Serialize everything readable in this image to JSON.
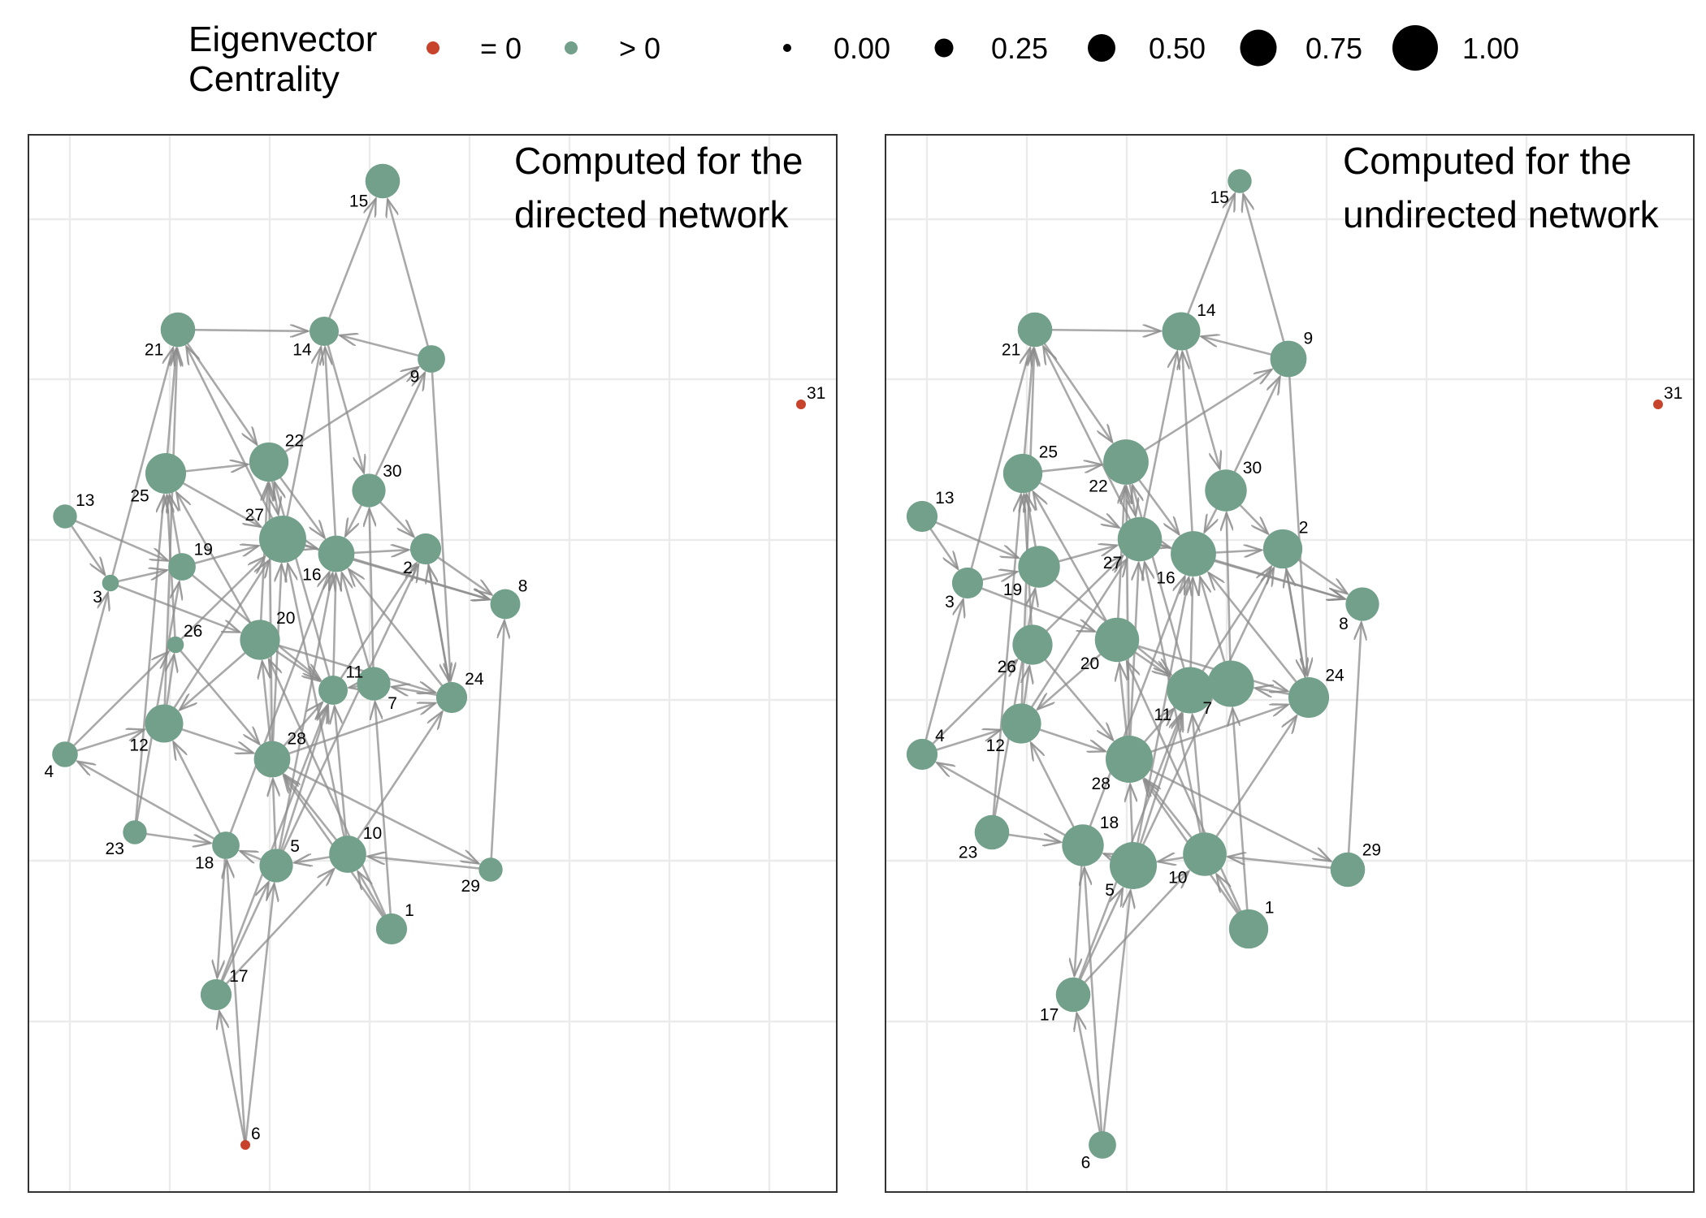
{
  "legend": {
    "title_line1": "Eigenvector",
    "title_line2": "Centrality",
    "color_items": [
      {
        "label": "= 0",
        "color": "#c8432b"
      },
      {
        "label": "> 0",
        "color": "#72a08a"
      }
    ],
    "size_items": [
      {
        "label": "0.00",
        "value": 0.0
      },
      {
        "label": "0.25",
        "value": 0.25
      },
      {
        "label": "0.50",
        "value": 0.5
      },
      {
        "label": "0.75",
        "value": 0.75
      },
      {
        "label": "1.00",
        "value": 1.0
      }
    ]
  },
  "colors": {
    "zero": "#c8432b",
    "positive": "#72a08a",
    "edge": "#8c8c8c",
    "grid": "#ebebeb",
    "border": "#333333"
  },
  "panels": [
    {
      "title_line1": "Computed for the",
      "title_line2": "directed network"
    },
    {
      "title_line1": "Computed for the",
      "title_line2": "undirected network"
    }
  ],
  "chart_data": {
    "type": "network",
    "edges": [
      [
        3,
        21
      ],
      [
        21,
        14
      ],
      [
        9,
        14
      ],
      [
        14,
        30
      ],
      [
        9,
        15
      ],
      [
        14,
        15
      ],
      [
        21,
        22
      ],
      [
        22,
        9
      ],
      [
        30,
        9
      ],
      [
        25,
        22
      ],
      [
        22,
        27
      ],
      [
        27,
        16
      ],
      [
        16,
        2
      ],
      [
        27,
        8
      ],
      [
        16,
        8
      ],
      [
        2,
        8
      ],
      [
        13,
        19
      ],
      [
        13,
        3
      ],
      [
        3,
        19
      ],
      [
        19,
        27
      ],
      [
        26,
        27
      ],
      [
        3,
        20
      ],
      [
        19,
        11
      ],
      [
        12,
        27
      ],
      [
        12,
        26
      ],
      [
        12,
        21
      ],
      [
        4,
        26
      ],
      [
        4,
        3
      ],
      [
        4,
        12
      ],
      [
        26,
        25
      ],
      [
        25,
        21
      ],
      [
        23,
        25
      ],
      [
        23,
        19
      ],
      [
        23,
        18
      ],
      [
        18,
        12
      ],
      [
        18,
        4
      ],
      [
        18,
        17
      ],
      [
        18,
        16
      ],
      [
        5,
        18
      ],
      [
        5,
        28
      ],
      [
        5,
        16
      ],
      [
        5,
        2
      ],
      [
        10,
        5
      ],
      [
        10,
        28
      ],
      [
        10,
        11
      ],
      [
        10,
        27
      ],
      [
        1,
        10
      ],
      [
        1,
        7
      ],
      [
        1,
        28
      ],
      [
        1,
        20
      ],
      [
        17,
        5
      ],
      [
        17,
        11
      ],
      [
        6,
        17
      ],
      [
        6,
        5
      ],
      [
        6,
        18
      ],
      [
        28,
        20
      ],
      [
        28,
        11
      ],
      [
        28,
        27
      ],
      [
        28,
        22
      ],
      [
        28,
        29
      ],
      [
        29,
        10
      ],
      [
        29,
        8
      ],
      [
        24,
        7
      ],
      [
        24,
        2
      ],
      [
        24,
        16
      ],
      [
        7,
        16
      ],
      [
        7,
        30
      ],
      [
        11,
        22
      ],
      [
        11,
        16
      ],
      [
        20,
        22
      ],
      [
        20,
        12
      ],
      [
        20,
        25
      ],
      [
        20,
        24
      ],
      [
        20,
        11
      ],
      [
        25,
        27
      ],
      [
        27,
        21
      ],
      [
        30,
        2
      ],
      [
        30,
        16
      ],
      [
        9,
        24
      ],
      [
        12,
        28
      ],
      [
        26,
        28
      ],
      [
        19,
        25
      ],
      [
        22,
        16
      ],
      [
        27,
        14
      ],
      [
        16,
        14
      ],
      [
        2,
        24
      ],
      [
        5,
        11
      ],
      [
        11,
        2
      ],
      [
        7,
        11
      ],
      [
        28,
        24
      ],
      [
        17,
        10
      ],
      [
        10,
        24
      ]
    ],
    "nodes": [
      {
        "id": "1",
        "directed": 0.55,
        "undirected": 0.78,
        "lx_d": 1,
        "ly_d": -1,
        "lx_u": 1,
        "ly_u": -1
      },
      {
        "id": "2",
        "directed": 0.55,
        "undirected": 0.78,
        "lx_d": -1,
        "ly_d": 1,
        "lx_u": 1,
        "ly_u": -1
      },
      {
        "id": "3",
        "directed": 0.15,
        "undirected": 0.55,
        "lx_d": -1,
        "ly_d": 1,
        "lx_u": -1,
        "ly_u": 1
      },
      {
        "id": "4",
        "directed": 0.4,
        "undirected": 0.55,
        "lx_d": -1,
        "ly_d": 1,
        "lx_u": 1,
        "ly_u": -1
      },
      {
        "id": "5",
        "directed": 0.62,
        "undirected": 1.0,
        "lx_d": 1,
        "ly_d": -1,
        "lx_u": -1,
        "ly_u": 1
      },
      {
        "id": "6",
        "directed": 0.0,
        "undirected": 0.45,
        "lx_d": 1,
        "ly_d": -1,
        "lx_u": -1,
        "ly_u": 1
      },
      {
        "id": "7",
        "directed": 0.62,
        "undirected": 0.98,
        "lx_d": 1,
        "ly_d": 1,
        "lx_u": -1,
        "ly_u": 1
      },
      {
        "id": "8",
        "directed": 0.52,
        "undirected": 0.62,
        "lx_d": 1,
        "ly_d": -1,
        "lx_u": -1,
        "ly_u": 1
      },
      {
        "id": "9",
        "directed": 0.45,
        "undirected": 0.7,
        "lx_d": -1,
        "ly_d": 1,
        "lx_u": 1,
        "ly_u": -1
      },
      {
        "id": "10",
        "directed": 0.72,
        "undirected": 0.9,
        "lx_d": 1,
        "ly_d": -1,
        "lx_u": -1,
        "ly_u": 1
      },
      {
        "id": "11",
        "directed": 0.5,
        "undirected": 0.98,
        "lx_d": 1,
        "ly_d": -1,
        "lx_u": -1,
        "ly_u": 1
      },
      {
        "id": "12",
        "directed": 0.75,
        "undirected": 0.8,
        "lx_d": -1,
        "ly_d": 1,
        "lx_u": -1,
        "ly_u": 1
      },
      {
        "id": "13",
        "directed": 0.35,
        "undirected": 0.55,
        "lx_d": 1,
        "ly_d": -1,
        "lx_u": 1,
        "ly_u": -1
      },
      {
        "id": "14",
        "directed": 0.5,
        "undirected": 0.75,
        "lx_d": -1,
        "ly_d": 1,
        "lx_u": 1,
        "ly_u": -1
      },
      {
        "id": "15",
        "directed": 0.65,
        "undirected": 0.35,
        "lx_d": -1,
        "ly_d": 1,
        "lx_u": -1,
        "ly_u": 1
      },
      {
        "id": "16",
        "directed": 0.7,
        "undirected": 0.95,
        "lx_d": -1,
        "ly_d": 1,
        "lx_u": -1,
        "ly_u": 1
      },
      {
        "id": "17",
        "directed": 0.55,
        "undirected": 0.65,
        "lx_d": 1,
        "ly_d": -1,
        "lx_u": -1,
        "ly_u": 1
      },
      {
        "id": "18",
        "directed": 0.45,
        "undirected": 0.85,
        "lx_d": -1,
        "ly_d": 1,
        "lx_u": 1,
        "ly_u": -1
      },
      {
        "id": "19",
        "directed": 0.45,
        "undirected": 0.85,
        "lx_d": 1,
        "ly_d": -1,
        "lx_u": -1,
        "ly_u": 1
      },
      {
        "id": "20",
        "directed": 0.8,
        "undirected": 0.92,
        "lx_d": 1,
        "ly_d": -1,
        "lx_u": -1,
        "ly_u": 1
      },
      {
        "id": "21",
        "directed": 0.65,
        "undirected": 0.65,
        "lx_d": -1,
        "ly_d": 1,
        "lx_u": -1,
        "ly_u": 1
      },
      {
        "id": "22",
        "directed": 0.78,
        "undirected": 0.95,
        "lx_d": 1,
        "ly_d": -1,
        "lx_u": -1,
        "ly_u": 1
      },
      {
        "id": "23",
        "directed": 0.35,
        "undirected": 0.65,
        "lx_d": -1,
        "ly_d": 1,
        "lx_u": -1,
        "ly_u": 1
      },
      {
        "id": "24",
        "directed": 0.55,
        "undirected": 0.82,
        "lx_d": 1,
        "ly_d": -1,
        "lx_u": 1,
        "ly_u": -1
      },
      {
        "id": "25",
        "directed": 0.82,
        "undirected": 0.78,
        "lx_d": -1,
        "ly_d": 1,
        "lx_u": 1,
        "ly_u": -1
      },
      {
        "id": "26",
        "directed": 0.15,
        "undirected": 0.8,
        "lx_d": 1,
        "ly_d": -1,
        "lx_u": -1,
        "ly_u": 1
      },
      {
        "id": "27",
        "directed": 1.0,
        "undirected": 0.92,
        "lx_d": -1,
        "ly_d": -1,
        "lx_u": -1,
        "ly_u": 1
      },
      {
        "id": "28",
        "directed": 0.7,
        "undirected": 1.0,
        "lx_d": 1,
        "ly_d": -1,
        "lx_u": -1,
        "ly_u": 1
      },
      {
        "id": "29",
        "directed": 0.35,
        "undirected": 0.65,
        "lx_d": -1,
        "ly_d": 1,
        "lx_u": 1,
        "ly_u": -1
      },
      {
        "id": "30",
        "directed": 0.62,
        "undirected": 0.85,
        "lx_d": 1,
        "ly_d": -1,
        "lx_u": 1,
        "ly_u": -1
      },
      {
        "id": "31",
        "directed": 0.0,
        "undirected": 0.0,
        "lx_d": 1,
        "ly_d": -1,
        "lx_u": 1,
        "ly_u": -1
      }
    ]
  }
}
